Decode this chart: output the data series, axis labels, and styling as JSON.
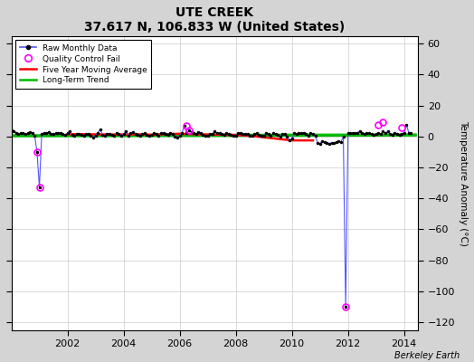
{
  "title": "UTE CREEK",
  "subtitle": "37.617 N, 106.833 W (United States)",
  "ylabel": "Temperature Anomaly (°C)",
  "xlabel_footer": "Berkeley Earth",
  "ylim": [
    -125,
    65
  ],
  "xlim": [
    2000.0,
    2014.5
  ],
  "yticks": [
    -120,
    -100,
    -80,
    -60,
    -40,
    -20,
    0,
    20,
    40,
    60
  ],
  "xticks": [
    2002,
    2004,
    2006,
    2008,
    2010,
    2012,
    2014
  ],
  "bg_color": "#d4d4d4",
  "plot_bg_color": "#ffffff",
  "raw_line_color": "#5555ff",
  "raw_dot_color": "#000000",
  "qc_marker_color": "#ff00ff",
  "moving_avg_color": "#ff0000",
  "trend_color": "#00bb00",
  "legend_raw": "Raw Monthly Data",
  "legend_qc": "Quality Control Fail",
  "legend_ma": "Five Year Moving Average",
  "legend_trend": "Long-Term Trend",
  "raw_x": [
    2000.0,
    2000.083,
    2000.167,
    2000.25,
    2000.333,
    2000.417,
    2000.5,
    2000.583,
    2000.667,
    2000.75,
    2000.833,
    2000.917,
    2001.0,
    2001.083,
    2001.167,
    2001.25,
    2001.333,
    2001.417,
    2001.5,
    2001.583,
    2001.667,
    2001.75,
    2001.833,
    2001.917,
    2002.0,
    2002.083,
    2002.167,
    2002.25,
    2002.333,
    2002.417,
    2002.5,
    2002.583,
    2002.667,
    2002.75,
    2002.833,
    2002.917,
    2003.0,
    2003.083,
    2003.167,
    2003.25,
    2003.333,
    2003.417,
    2003.5,
    2003.583,
    2003.667,
    2003.75,
    2003.833,
    2003.917,
    2004.0,
    2004.083,
    2004.167,
    2004.25,
    2004.333,
    2004.417,
    2004.5,
    2004.583,
    2004.667,
    2004.75,
    2004.833,
    2004.917,
    2005.0,
    2005.083,
    2005.167,
    2005.25,
    2005.333,
    2005.417,
    2005.5,
    2005.583,
    2005.667,
    2005.75,
    2005.833,
    2005.917,
    2006.0,
    2006.083,
    2006.167,
    2006.25,
    2006.333,
    2006.417,
    2006.5,
    2006.583,
    2006.667,
    2006.75,
    2006.833,
    2006.917,
    2007.0,
    2007.083,
    2007.167,
    2007.25,
    2007.333,
    2007.417,
    2007.5,
    2007.583,
    2007.667,
    2007.75,
    2007.833,
    2007.917,
    2008.0,
    2008.083,
    2008.167,
    2008.25,
    2008.333,
    2008.417,
    2008.5,
    2008.583,
    2008.667,
    2008.75,
    2008.833,
    2008.917,
    2009.0,
    2009.083,
    2009.167,
    2009.25,
    2009.333,
    2009.417,
    2009.5,
    2009.583,
    2009.667,
    2009.75,
    2009.833,
    2009.917,
    2010.0,
    2010.083,
    2010.167,
    2010.25,
    2010.333,
    2010.417,
    2010.5,
    2010.583,
    2010.667,
    2010.75,
    2010.833,
    2010.917,
    2011.0,
    2011.083,
    2011.167,
    2011.25,
    2011.333,
    2011.417,
    2011.5,
    2011.583,
    2011.667,
    2011.75,
    2011.833,
    2011.917,
    2012.0,
    2012.083,
    2012.167,
    2012.25,
    2012.333,
    2012.417,
    2012.5,
    2012.583,
    2012.667,
    2012.75,
    2012.833,
    2012.917,
    2013.0,
    2013.083,
    2013.167,
    2013.25,
    2013.333,
    2013.417,
    2013.5,
    2013.583,
    2013.667,
    2013.75,
    2013.833,
    2013.917,
    2014.0,
    2014.083,
    2014.167,
    2014.25
  ],
  "raw_y": [
    4.0,
    3.5,
    2.5,
    1.5,
    2.0,
    2.5,
    1.5,
    2.0,
    3.0,
    2.0,
    0.5,
    -10.0,
    -33.0,
    1.5,
    2.5,
    2.0,
    3.0,
    1.5,
    1.5,
    2.0,
    2.5,
    2.0,
    1.5,
    1.0,
    2.0,
    3.5,
    1.0,
    0.5,
    1.5,
    1.5,
    1.0,
    0.5,
    1.5,
    1.5,
    0.5,
    -0.5,
    0.5,
    2.5,
    4.5,
    1.0,
    0.5,
    1.5,
    1.5,
    1.0,
    0.5,
    2.0,
    1.5,
    0.5,
    1.5,
    3.5,
    0.5,
    2.0,
    3.0,
    1.5,
    1.0,
    0.5,
    1.5,
    2.0,
    1.0,
    0.5,
    1.0,
    2.0,
    1.5,
    0.5,
    2.5,
    2.0,
    1.5,
    1.0,
    2.5,
    1.5,
    0.0,
    -0.5,
    0.5,
    2.5,
    7.0,
    2.0,
    4.0,
    3.0,
    2.0,
    1.5,
    3.0,
    2.5,
    1.0,
    0.5,
    0.5,
    1.5,
    1.5,
    3.5,
    2.0,
    2.0,
    1.5,
    1.0,
    2.0,
    1.5,
    1.0,
    0.5,
    0.5,
    2.0,
    2.5,
    1.5,
    1.5,
    1.5,
    0.5,
    0.5,
    1.5,
    2.0,
    1.0,
    0.5,
    0.5,
    2.0,
    1.5,
    0.5,
    2.0,
    1.5,
    1.0,
    0.0,
    1.5,
    1.5,
    0.0,
    -2.5,
    -1.5,
    2.0,
    1.5,
    2.5,
    2.0,
    2.5,
    1.5,
    0.5,
    2.0,
    1.5,
    0.5,
    -4.0,
    -4.5,
    -3.0,
    -3.5,
    -4.0,
    -4.5,
    -4.0,
    -4.0,
    -3.5,
    -3.0,
    -3.5,
    0.0,
    -110.0,
    2.5,
    2.0,
    2.0,
    2.5,
    2.5,
    3.5,
    2.0,
    1.5,
    2.5,
    2.0,
    1.5,
    1.0,
    1.5,
    2.0,
    1.5,
    3.5,
    2.0,
    3.5,
    1.5,
    1.0,
    2.5,
    1.5,
    1.0,
    1.5,
    2.5,
    7.5,
    2.5,
    2.0
  ],
  "qc_x": [
    2000.917,
    2001.0,
    2006.25,
    2006.333,
    2011.917,
    2013.083,
    2013.25,
    2013.917
  ],
  "qc_y": [
    -10.0,
    -33.0,
    7.0,
    4.0,
    -110.0,
    7.5,
    9.0,
    5.5
  ],
  "moving_avg_x": [
    2002.0,
    2002.5,
    2003.0,
    2003.5,
    2004.0,
    2004.5,
    2005.0,
    2005.5,
    2006.0,
    2006.5,
    2007.0,
    2007.5,
    2008.0,
    2008.5,
    2009.0,
    2009.5,
    2010.0,
    2010.5,
    2010.75
  ],
  "moving_avg_y": [
    1.5,
    1.5,
    1.4,
    1.3,
    1.3,
    1.4,
    1.2,
    1.5,
    1.8,
    1.5,
    1.3,
    1.2,
    1.0,
    0.5,
    -0.5,
    -1.5,
    -2.5,
    -2.5,
    -2.5
  ],
  "trend_x": [
    2000.0,
    2014.4
  ],
  "trend_y": [
    0.5,
    1.0
  ]
}
